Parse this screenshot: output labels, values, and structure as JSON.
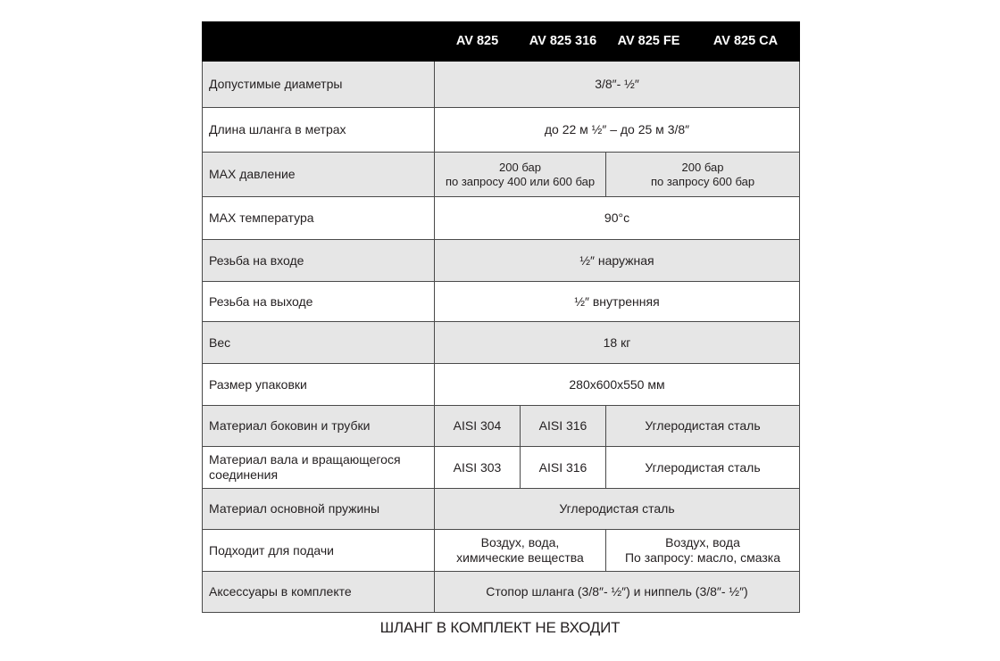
{
  "header": {
    "columns": [
      "AV 825",
      "AV 825 316",
      "AV 825 FE",
      "AV 825 CA"
    ]
  },
  "rows": [
    {
      "label": "Допустимые диаметры",
      "cells": [
        "3/8″- ½″"
      ]
    },
    {
      "label": "Длина шланга в метрах",
      "cells": [
        "до 22 м ½″ – до 25 м 3/8″"
      ]
    },
    {
      "label": "MAX давление",
      "cells": [
        [
          "200 бар",
          "по запросу 400 или 600 бар"
        ],
        [
          "200 бар",
          "по запросу 600 бар"
        ]
      ]
    },
    {
      "label": "MAX температура",
      "cells": [
        "90°c"
      ]
    },
    {
      "label": "Резьба на входе",
      "cells": [
        "½″ наружная"
      ]
    },
    {
      "label": "Резьба на выходе",
      "cells": [
        "½″ внутренняя"
      ]
    },
    {
      "label": "Вес",
      "cells": [
        "18 кг"
      ]
    },
    {
      "label": "Размер упаковки",
      "cells": [
        "280x600x550 мм"
      ]
    },
    {
      "label": "Материал боковин и трубки",
      "cells": [
        "AISI 304",
        "AISI 316",
        "Углеродистая сталь"
      ]
    },
    {
      "label": [
        "Материал вала и вращающегося",
        "соединения"
      ],
      "cells": [
        "AISI 303",
        "AISI 316",
        "Углеродистая сталь"
      ]
    },
    {
      "label": "Материал основной пружины",
      "cells": [
        "Углеродистая сталь"
      ]
    },
    {
      "label": "Подходит для подачи",
      "cells": [
        [
          "Воздух, вода,",
          "химические вещества"
        ],
        [
          "Воздух, вода",
          "По запросу: масло, смазка"
        ]
      ]
    },
    {
      "label": "Аксессуары в комплекте",
      "cells": [
        "Стопор шланга (3/8″- ½″) и ниппель (3/8″- ½″)"
      ]
    }
  ],
  "footer_note": "ШЛАНГ В КОМПЛЕКТ НЕ ВХОДИТ",
  "colors": {
    "header_bg": "#000000",
    "row_shade": "#e6e6e6",
    "border": "#4a4a4a"
  }
}
